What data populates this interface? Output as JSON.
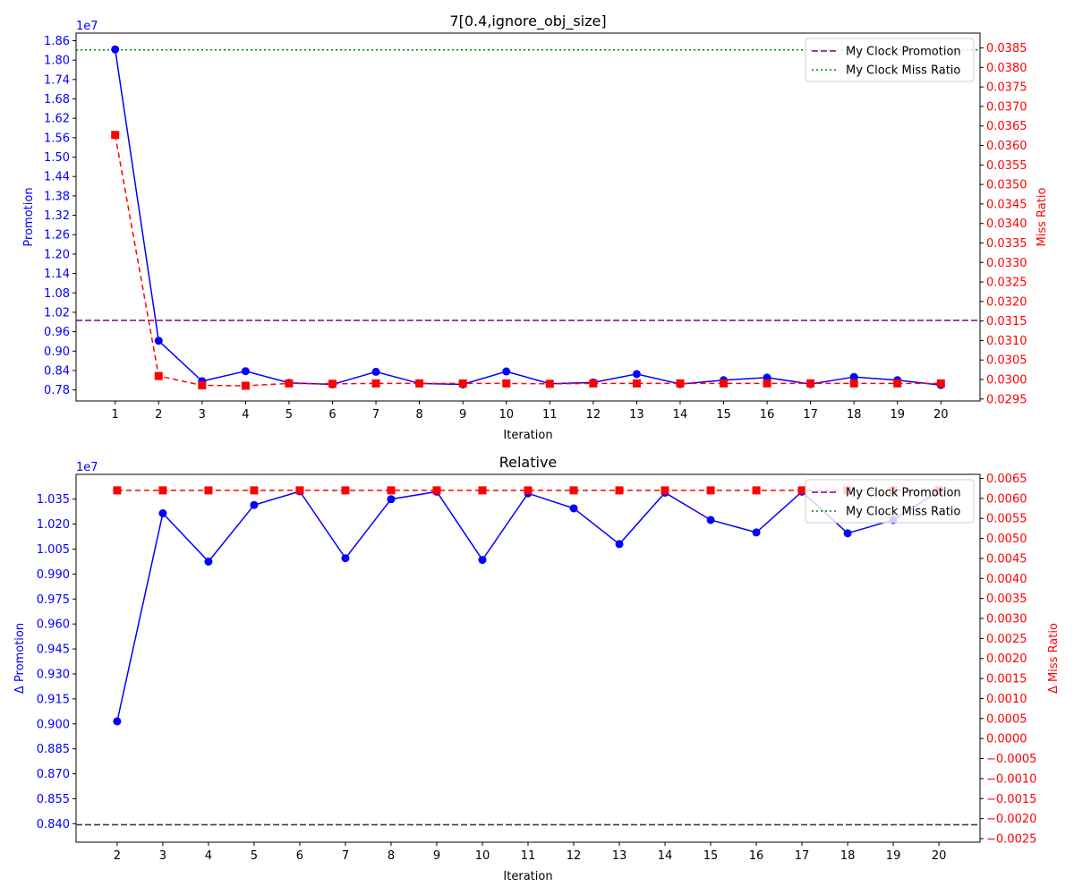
{
  "colors": {
    "promotion": "#0000ff",
    "miss_ratio": "#ff0000",
    "ref_promotion": "#800080",
    "ref_miss_ratio": "#008000",
    "text": "#000000"
  },
  "chart_data": [
    {
      "type": "line",
      "title": "7[0.4,ignore_obj_size]",
      "xlabel": "Iteration",
      "ylabel_left": "Promotion",
      "ylabel_right": "Miss Ratio",
      "left_axis_offset_label": "1e7",
      "x": [
        1,
        2,
        3,
        4,
        5,
        6,
        7,
        8,
        9,
        10,
        11,
        12,
        13,
        14,
        15,
        16,
        17,
        18,
        19,
        20
      ],
      "xlim": [
        0.1,
        20.9
      ],
      "left_ylim": [
        0.7458,
        1.8835
      ],
      "left_ticks": [
        0.78,
        0.84,
        0.9,
        0.96,
        1.02,
        1.08,
        1.14,
        1.2,
        1.26,
        1.32,
        1.38,
        1.44,
        1.5,
        1.56,
        1.62,
        1.68,
        1.74,
        1.8,
        1.86
      ],
      "left_tick_labels": [
        "0.78",
        "0.84",
        "0.90",
        "0.96",
        "1.02",
        "1.08",
        "1.14",
        "1.20",
        "1.26",
        "1.32",
        "1.38",
        "1.44",
        "1.50",
        "1.56",
        "1.62",
        "1.68",
        "1.74",
        "1.80",
        "1.86"
      ],
      "right_ylim": [
        0.02945,
        0.03888
      ],
      "right_ticks": [
        0.0295,
        0.03,
        0.0305,
        0.031,
        0.0315,
        0.032,
        0.0325,
        0.033,
        0.0335,
        0.034,
        0.0345,
        0.035,
        0.0355,
        0.036,
        0.0365,
        0.037,
        0.0375,
        0.038,
        0.0385
      ],
      "right_tick_labels": [
        "0.0295",
        "0.0300",
        "0.0305",
        "0.0310",
        "0.0315",
        "0.0320",
        "0.0325",
        "0.0330",
        "0.0335",
        "0.0340",
        "0.0345",
        "0.0350",
        "0.0355",
        "0.0360",
        "0.0365",
        "0.0370",
        "0.0375",
        "0.0380",
        "0.0385"
      ],
      "series": [
        {
          "axis": "left",
          "style": "solid-circle",
          "values": [
            1.833,
            0.932,
            0.807,
            0.838,
            0.802,
            0.797,
            0.836,
            0.8,
            0.797,
            0.837,
            0.799,
            0.803,
            0.829,
            0.798,
            0.81,
            0.818,
            0.798,
            0.82,
            0.81,
            0.795
          ]
        },
        {
          "axis": "right",
          "style": "dashed-square",
          "values": [
            0.03627,
            0.03009,
            0.02985,
            0.02984,
            0.0299,
            0.02989,
            0.0299,
            0.0299,
            0.0299,
            0.0299,
            0.02989,
            0.0299,
            0.0299,
            0.0299,
            0.0299,
            0.0299,
            0.0299,
            0.0299,
            0.0299,
            0.0299
          ]
        },
        {
          "name": "My Clock Promotion",
          "axis": "left",
          "style": "dashed-hline",
          "value": 0.995
        },
        {
          "name": "My Clock Miss Ratio",
          "axis": "right",
          "style": "dotted-hline",
          "value": 0.03845
        }
      ],
      "legend": "top-right",
      "grid": false
    },
    {
      "type": "line",
      "title": "Relative",
      "xlabel": "Iteration",
      "ylabel_left": "Δ Promotion",
      "ylabel_right": "Δ Miss Ratio",
      "left_axis_offset_label": "1e7",
      "x": [
        2,
        3,
        4,
        5,
        6,
        7,
        8,
        9,
        10,
        11,
        12,
        13,
        14,
        15,
        16,
        17,
        18,
        19,
        20
      ],
      "xlim": [
        1.1,
        20.9
      ],
      "left_ylim": [
        0.8289,
        1.0499
      ],
      "left_ticks": [
        0.84,
        0.855,
        0.87,
        0.885,
        0.9,
        0.915,
        0.93,
        0.945,
        0.96,
        0.975,
        0.99,
        1.005,
        1.02,
        1.035
      ],
      "left_tick_labels": [
        "0.840",
        "0.855",
        "0.870",
        "0.885",
        "0.900",
        "0.915",
        "0.930",
        "0.945",
        "0.960",
        "0.975",
        "0.990",
        "1.005",
        "1.020",
        "1.035"
      ],
      "right_ylim": [
        -0.00259,
        0.0066
      ],
      "right_ticks": [
        -0.0025,
        -0.002,
        -0.0015,
        -0.001,
        -0.0005,
        0.0,
        0.0005,
        0.001,
        0.0015,
        0.002,
        0.0025,
        0.003,
        0.0035,
        0.004,
        0.0045,
        0.005,
        0.0055,
        0.006,
        0.0065
      ],
      "right_tick_labels": [
        "−0.0025",
        "−0.0020",
        "−0.0015",
        "−0.0010",
        "−0.0005",
        "0.0000",
        "0.0005",
        "0.0010",
        "0.0015",
        "0.0020",
        "0.0025",
        "0.0030",
        "0.0035",
        "0.0040",
        "0.0045",
        "0.0050",
        "0.0055",
        "0.0060",
        "0.0065"
      ],
      "series": [
        {
          "axis": "left",
          "style": "solid-circle",
          "values": [
            0.9015,
            1.0265,
            0.9975,
            1.0315,
            1.0397,
            0.9995,
            1.035,
            1.0395,
            0.9985,
            1.0385,
            1.0295,
            1.008,
            1.0389,
            1.0225,
            1.015,
            1.0395,
            1.0145,
            1.0225,
            1.0398
          ]
        },
        {
          "axis": "right",
          "style": "dashed-square",
          "values": [
            0.0062,
            0.0062,
            0.0062,
            0.0062,
            0.0062,
            0.0062,
            0.0062,
            0.0062,
            0.0062,
            0.0062,
            0.0062,
            0.0062,
            0.0062,
            0.0062,
            0.0062,
            0.0062,
            0.0062,
            0.0062,
            0.0062
          ]
        },
        {
          "name": "My Clock Promotion",
          "axis": "left",
          "style": "dashed-hline",
          "value": 0.8394
        },
        {
          "name": "My Clock Miss Ratio",
          "axis": "left",
          "style": "dotted-hline",
          "value": 0.8394
        }
      ],
      "legend": "top-right",
      "grid": false
    }
  ]
}
